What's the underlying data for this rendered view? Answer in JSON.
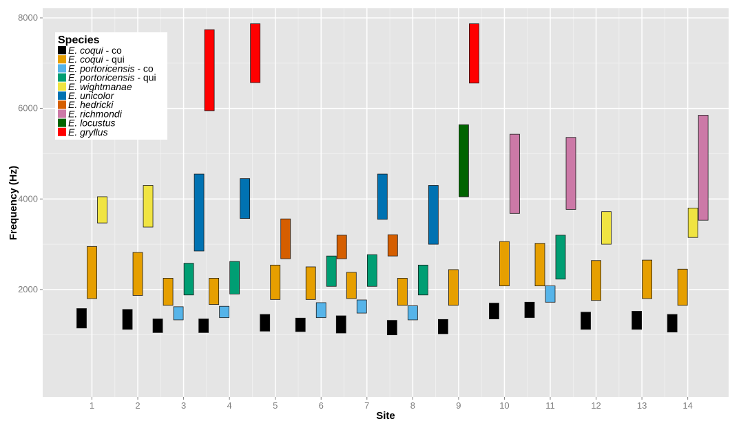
{
  "chart_data": {
    "type": "bar",
    "subtype": "floating-range",
    "xlabel": "Site",
    "ylabel": "Frequency (Hz)",
    "ylim": [
      0,
      8000
    ],
    "yticks": [
      2000,
      4000,
      6000,
      8000
    ],
    "xticks": [
      "1",
      "2",
      "3",
      "4",
      "5",
      "6",
      "7",
      "8",
      "9",
      "10",
      "11",
      "12",
      "13",
      "14"
    ],
    "grid": true,
    "legend": {
      "title": "Species",
      "placement": "top-left"
    },
    "series": [
      {
        "name": "E. coqui - co",
        "italic": "E. coqui",
        "suffix": " - co",
        "color": "#000000",
        "ranges": [
          [
            1,
            1150,
            1580
          ],
          [
            2,
            1120,
            1560
          ],
          [
            3,
            1050,
            1350
          ],
          [
            4,
            1050,
            1350
          ],
          [
            5,
            1080,
            1450
          ],
          [
            6,
            1070,
            1370
          ],
          [
            7,
            1040,
            1420
          ],
          [
            8,
            1000,
            1320
          ],
          [
            9,
            1020,
            1340
          ],
          [
            10,
            1350,
            1700
          ],
          [
            11,
            1380,
            1720
          ],
          [
            12,
            1120,
            1500
          ],
          [
            13,
            1120,
            1520
          ],
          [
            14,
            1060,
            1450
          ]
        ]
      },
      {
        "name": "E. coqui - qui",
        "italic": "E. coqui",
        "suffix": " - qui",
        "color": "#E69F00",
        "ranges": [
          [
            1,
            1800,
            2950
          ],
          [
            2,
            1870,
            2820
          ],
          [
            3,
            1650,
            2250
          ],
          [
            4,
            1670,
            2250
          ],
          [
            5,
            1780,
            2540
          ],
          [
            6,
            1780,
            2500
          ],
          [
            7,
            1800,
            2380
          ],
          [
            8,
            1650,
            2250
          ],
          [
            9,
            1650,
            2440
          ],
          [
            10,
            2080,
            3060
          ],
          [
            11,
            2080,
            3020
          ],
          [
            12,
            1760,
            2640
          ],
          [
            13,
            1800,
            2650
          ],
          [
            14,
            1650,
            2450
          ]
        ]
      },
      {
        "name": "E. portoricensis - co",
        "italic": "E. portoricensis",
        "suffix": " - co",
        "color": "#56B4E9",
        "ranges": [
          [
            3,
            1330,
            1620
          ],
          [
            4,
            1380,
            1630
          ],
          [
            6,
            1380,
            1710
          ],
          [
            7,
            1480,
            1770
          ],
          [
            8,
            1330,
            1640
          ],
          [
            11,
            1720,
            2080
          ]
        ]
      },
      {
        "name": "E. portoricensis - qui",
        "italic": "E. portoricensis",
        "suffix": " - qui",
        "color": "#009E73",
        "ranges": [
          [
            3,
            1880,
            2580
          ],
          [
            4,
            1900,
            2620
          ],
          [
            6,
            2070,
            2740
          ],
          [
            7,
            2070,
            2770
          ],
          [
            8,
            1880,
            2540
          ],
          [
            11,
            2230,
            3200
          ]
        ]
      },
      {
        "name": "E. wightmanae",
        "italic": "E. wightmanae",
        "suffix": "",
        "color": "#F0E442",
        "ranges": [
          [
            1,
            3470,
            4050
          ],
          [
            2,
            3380,
            4300
          ],
          [
            12,
            3000,
            3720
          ],
          [
            14,
            3150,
            3800
          ]
        ]
      },
      {
        "name": "E. unicolor",
        "italic": "E. unicolor",
        "suffix": "",
        "color": "#0072B2",
        "ranges": [
          [
            3,
            2850,
            4550
          ],
          [
            4,
            3570,
            4450
          ],
          [
            7,
            3550,
            4550
          ],
          [
            8,
            3000,
            4300
          ]
        ]
      },
      {
        "name": "E. hedricki",
        "italic": "E. hedricki",
        "suffix": "",
        "color": "#D55E00",
        "ranges": [
          [
            5,
            2680,
            3560
          ],
          [
            6,
            2680,
            3200
          ],
          [
            7,
            2740,
            3210
          ]
        ]
      },
      {
        "name": "E. richmondi",
        "italic": "E. richmondi",
        "suffix": "",
        "color": "#CC79A7",
        "ranges": [
          [
            10,
            3680,
            5430
          ],
          [
            11,
            3770,
            5360
          ],
          [
            14,
            3530,
            5850
          ]
        ]
      },
      {
        "name": "E. locustus",
        "italic": "E. locustus",
        "suffix": "",
        "color": "#006400",
        "ranges": [
          [
            9,
            4050,
            5640
          ]
        ]
      },
      {
        "name": "E. gryllus",
        "italic": "E. gryllus",
        "suffix": "",
        "color": "#FF0000",
        "ranges": [
          [
            3,
            5950,
            7740
          ],
          [
            4,
            6570,
            7870
          ],
          [
            9,
            6560,
            7870
          ]
        ]
      }
    ]
  }
}
